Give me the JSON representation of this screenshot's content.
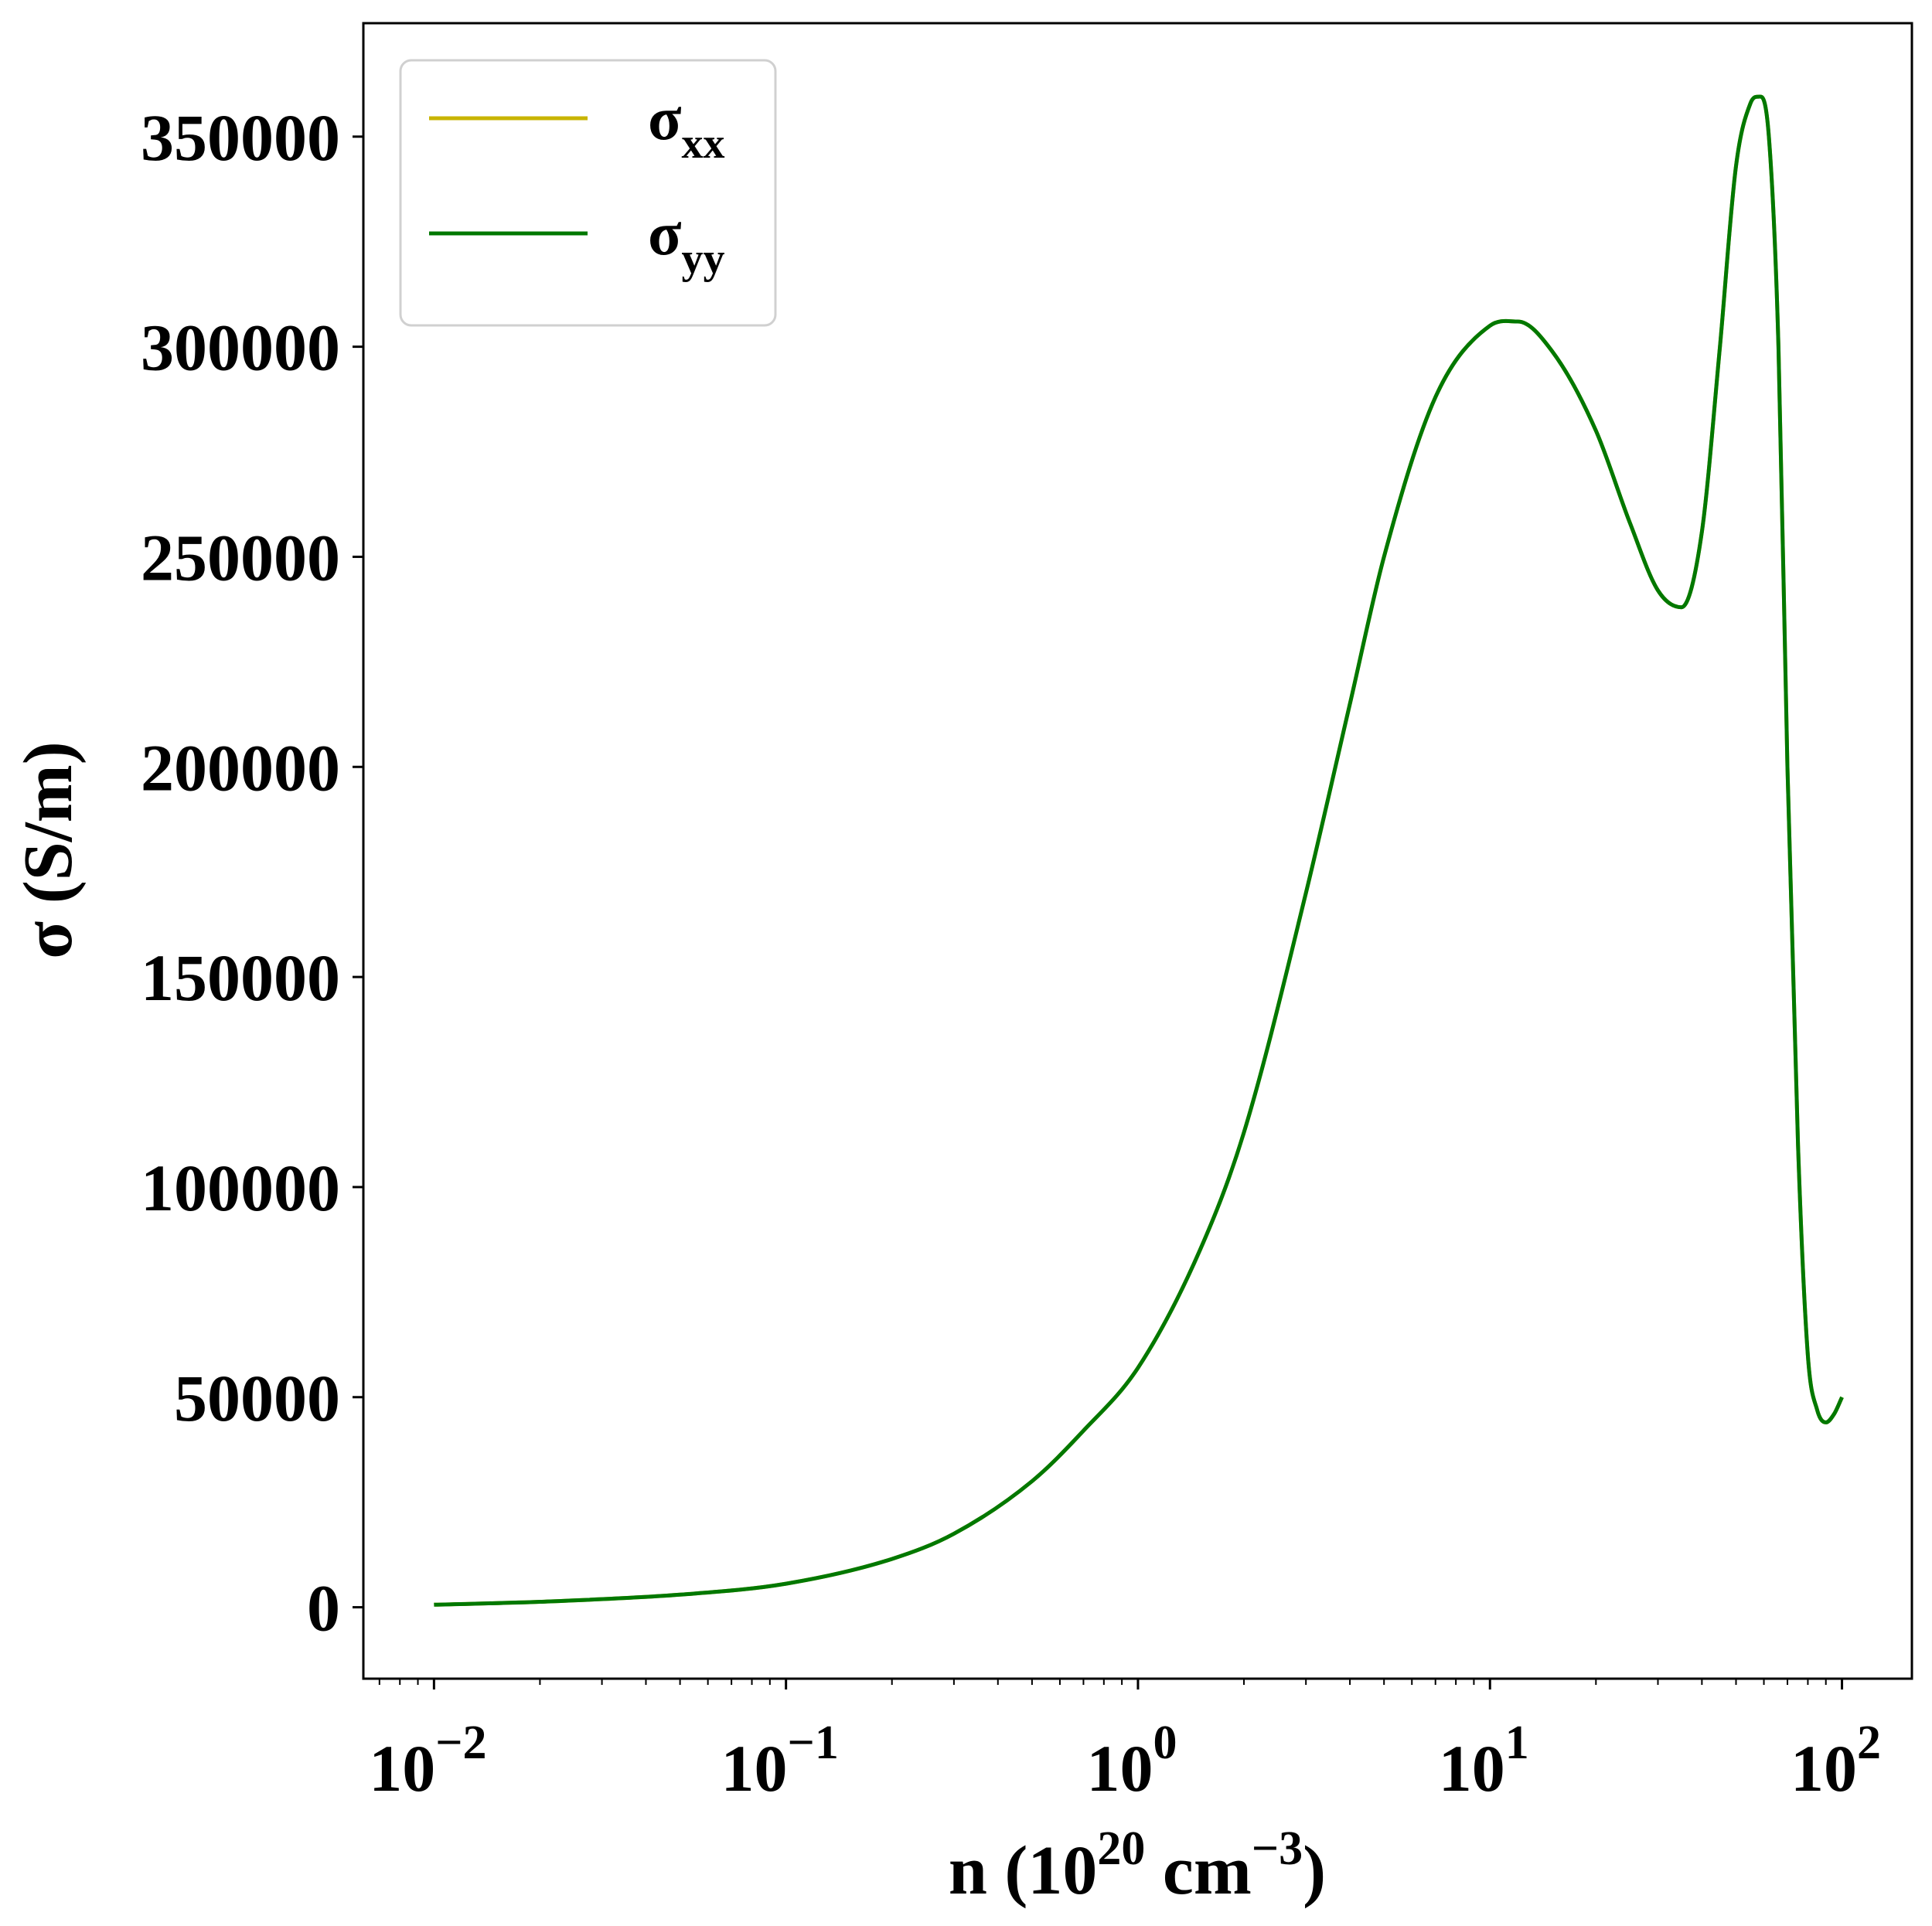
{
  "chart_data": {
    "type": "line",
    "xlabel_parts": {
      "pre": "n (10",
      "exp1": "20",
      "mid": " cm",
      "exp2": "−3",
      "post": ")"
    },
    "ylabel": "σ (S/m)",
    "xscale": "log",
    "xlim": [
      0.0063,
      158
    ],
    "ylim": [
      -17000,
      377000
    ],
    "grid": false,
    "legend_position": "top-left",
    "x_ticks": [
      {
        "value": 0.01,
        "base": "10",
        "exp": "−2"
      },
      {
        "value": 0.1,
        "base": "10",
        "exp": "−1"
      },
      {
        "value": 1,
        "base": "10",
        "exp": "0"
      },
      {
        "value": 10,
        "base": "10",
        "exp": "1"
      },
      {
        "value": 100,
        "base": "10",
        "exp": "2"
      }
    ],
    "y_ticks": [
      {
        "value": 0,
        "label": "0"
      },
      {
        "value": 50000,
        "label": "50000"
      },
      {
        "value": 100000,
        "label": "100000"
      },
      {
        "value": 150000,
        "label": "150000"
      },
      {
        "value": 200000,
        "label": "200000"
      },
      {
        "value": 250000,
        "label": "250000"
      },
      {
        "value": 300000,
        "label": "300000"
      },
      {
        "value": 350000,
        "label": "350000"
      }
    ],
    "series": [
      {
        "name_base": "σ",
        "name_sub": "xx",
        "color": "#c8b400",
        "x": [
          0.01,
          0.02,
          0.05,
          0.1,
          0.2,
          0.3,
          0.5,
          0.7,
          1,
          1.5,
          2,
          3,
          4,
          5,
          7,
          10,
          12,
          15,
          20,
          25,
          30,
          35,
          40,
          45,
          50,
          55,
          58,
          62,
          66,
          70,
          75,
          80,
          85,
          90,
          95,
          100
        ],
        "y": [
          600,
          1300,
          3000,
          5600,
          11500,
          17500,
          30000,
          42000,
          57000,
          85000,
          113000,
          170000,
          215000,
          250000,
          288000,
          305000,
          306000,
          299000,
          280000,
          258000,
          242000,
          238000,
          256000,
          300000,
          343000,
          358000,
          359500,
          350000,
          300000,
          200000,
          110000,
          60000,
          47000,
          44000,
          46000,
          50000
        ]
      },
      {
        "name_base": "σ",
        "name_sub": "yy",
        "color": "#007800",
        "x": [
          0.01,
          0.02,
          0.05,
          0.1,
          0.2,
          0.3,
          0.5,
          0.7,
          1,
          1.5,
          2,
          3,
          4,
          5,
          7,
          10,
          12,
          15,
          20,
          25,
          30,
          35,
          40,
          45,
          50,
          55,
          58,
          62,
          66,
          70,
          75,
          80,
          85,
          90,
          95,
          100
        ],
        "y": [
          600,
          1300,
          3000,
          5600,
          11500,
          17500,
          30000,
          42000,
          57000,
          85000,
          113000,
          170000,
          215000,
          250000,
          288000,
          305000,
          306000,
          299000,
          280000,
          258000,
          242000,
          238000,
          256000,
          300000,
          343000,
          358000,
          359500,
          350000,
          300000,
          200000,
          110000,
          60000,
          47000,
          44000,
          46000,
          50000
        ]
      }
    ]
  }
}
